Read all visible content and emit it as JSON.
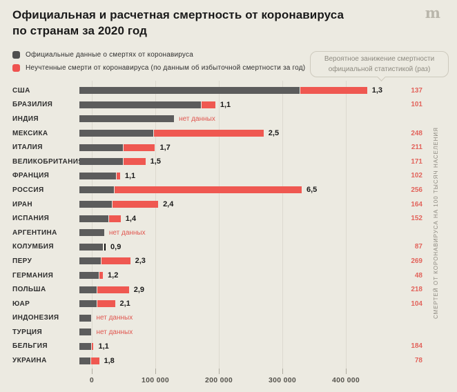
{
  "header": {
    "title_line1": "Официальная и расчетная смертность от коронавируса",
    "title_line2": "по странам за 2020 год",
    "logo_glyph": "m"
  },
  "legend": [
    {
      "label": "Официальные данные о смертях от коронавируса",
      "color": "#4f4f4f"
    },
    {
      "label": "Неучтенные смерти от коронавируса (по данным об избыточной смертности за год)",
      "color": "#EF5350"
    }
  ],
  "tooltip": {
    "line1": "Вероятное занижение смертности",
    "line2": "официальной статистикой (раз)"
  },
  "colors": {
    "background": "#ECEAE1",
    "official_bar": "#5c5c5c",
    "excess_bar": "#EF5851",
    "red_text": "#E2635B",
    "gridline": "#DCD9CF"
  },
  "chart_data": {
    "type": "bar",
    "orientation": "horizontal",
    "title": "Официальная и расчетная смертность от коронавируса по странам за 2020 год",
    "x_tick_labels": [
      "0",
      "100 000",
      "200 000",
      "300 000",
      "400 000"
    ],
    "x_tick_values": [
      0,
      100000,
      200000,
      300000,
      400000
    ],
    "xlim": [
      0,
      465000
    ],
    "right_axis_label": "СМЕРТЕЙ ОТ КОРОНАВИРУСА НА 100 ТЫСЯЧ НАСЕЛЕНИЯ",
    "no_data_label": "нет данных",
    "series_names": [
      "Официальные данные о смертях от коронавируса",
      "Неучтенные смерти от коронавируса (по данным об избыточной смертности за год)"
    ],
    "rows": [
      {
        "country": "США",
        "official": 347000,
        "total": 453000,
        "ratio": "1,3",
        "per100k": "137"
      },
      {
        "country": "БРАЗИЛИЯ",
        "official": 191000,
        "total": 214000,
        "ratio": "1,1",
        "per100k": "101"
      },
      {
        "country": "ИНДИЯ",
        "official": 149000,
        "total": null,
        "ratio": "нет данных",
        "per100k": ""
      },
      {
        "country": "МЕКСИКА",
        "official": 116000,
        "total": 290000,
        "ratio": "2,5",
        "per100k": "248"
      },
      {
        "country": "ИТАЛИЯ",
        "official": 68000,
        "total": 119000,
        "ratio": "1,7",
        "per100k": "211"
      },
      {
        "country": "ВЕЛИКОБРИТАНИЯ",
        "official": 68000,
        "total": 104000,
        "ratio": "1,5",
        "per100k": "171"
      },
      {
        "country": "ФРАНЦИЯ",
        "official": 58000,
        "total": 64000,
        "ratio": "1,1",
        "per100k": "102"
      },
      {
        "country": "РОССИЯ",
        "official": 54000,
        "total": 350000,
        "ratio": "6,5",
        "per100k": "256"
      },
      {
        "country": "ИРАН",
        "official": 51000,
        "total": 124000,
        "ratio": "2,4",
        "per100k": "164"
      },
      {
        "country": "ИСПАНИЯ",
        "official": 46000,
        "total": 65000,
        "ratio": "1,4",
        "per100k": "152"
      },
      {
        "country": "АРГЕНТИНА",
        "official": 39000,
        "total": null,
        "ratio": "нет данных",
        "per100k": ""
      },
      {
        "country": "КОЛУМБИЯ",
        "official": 37000,
        "total": 33000,
        "ratio": "0,9",
        "per100k": "87",
        "marker": true
      },
      {
        "country": "ПЕРУ",
        "official": 34000,
        "total": 80000,
        "ratio": "2,3",
        "per100k": "269"
      },
      {
        "country": "ГЕРМАНИЯ",
        "official": 30000,
        "total": 37000,
        "ratio": "1,2",
        "per100k": "48"
      },
      {
        "country": "ПОЛЬША",
        "official": 27000,
        "total": 78000,
        "ratio": "2,9",
        "per100k": "218"
      },
      {
        "country": "ЮАР",
        "official": 27000,
        "total": 56000,
        "ratio": "2,1",
        "per100k": "104"
      },
      {
        "country": "ИНДОНЕЗИЯ",
        "official": 19000,
        "total": null,
        "ratio": "нет данных",
        "per100k": ""
      },
      {
        "country": "ТУРЦИЯ",
        "official": 19000,
        "total": null,
        "ratio": "нет данных",
        "per100k": ""
      },
      {
        "country": "БЕЛЬГИЯ",
        "official": 19000,
        "total": 21000,
        "ratio": "1,1",
        "per100k": "184"
      },
      {
        "country": "УКРАИНА",
        "official": 17000,
        "total": 31000,
        "ratio": "1,8",
        "per100k": "78"
      }
    ]
  }
}
